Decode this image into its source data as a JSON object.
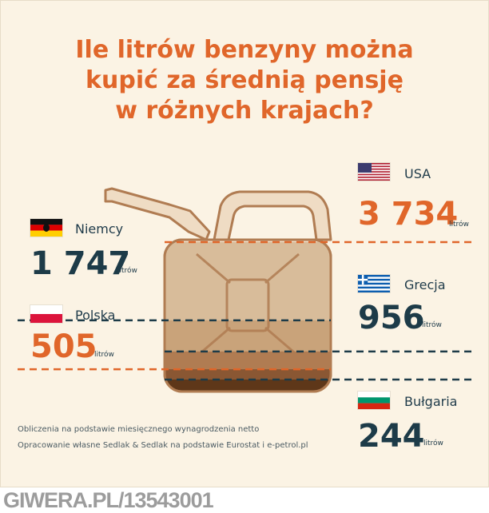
{
  "title_lines": [
    "Ile litrów benzyny można",
    "kupić za średnią pensję",
    "w różnych krajach?"
  ],
  "unit_label": "litrów",
  "chart_data": {
    "type": "bar",
    "title": "Ile litrów benzyny można kupić za średnią pensję w różnych krajach?",
    "categories": [
      "USA",
      "Niemcy",
      "Grecja",
      "Polska",
      "Bułgaria"
    ],
    "series": [
      {
        "values": [
          3734,
          1747,
          956,
          505,
          244
        ]
      }
    ],
    "display_values": [
      "3 734",
      "1 747",
      "956",
      "505",
      "244"
    ],
    "unit": "litrów",
    "country_colors": {
      "USA": "#e0662a",
      "Niemcy": "#1d3b48",
      "Grecja": "#1d3b48",
      "Polska": "#e0662a",
      "Bułgaria": "#1d3b48"
    }
  },
  "footnotes": [
    "Obliczenia na podstawie miesięcznego wynagrodzenia netto",
    "Opracowanie własne Sedlak & Sedlak na podstawie Eurostat i e-petrol.pl"
  ],
  "watermark": "GIWERA.PL/13543001",
  "colors": {
    "orange": "#e0662a",
    "navy": "#1d3b48",
    "background": "#fbf3e4",
    "fuel_layers": [
      "#d8bc9a",
      "#c9a37a",
      "#b07c52",
      "#8a5733",
      "#5e3719"
    ],
    "canister": "#efdcc4",
    "canister_stroke": "#b07c52"
  },
  "icons": [
    "flag-usa-icon",
    "flag-germany-icon",
    "flag-greece-icon",
    "flag-poland-icon",
    "flag-bulgaria-icon",
    "jerrycan-icon"
  ]
}
